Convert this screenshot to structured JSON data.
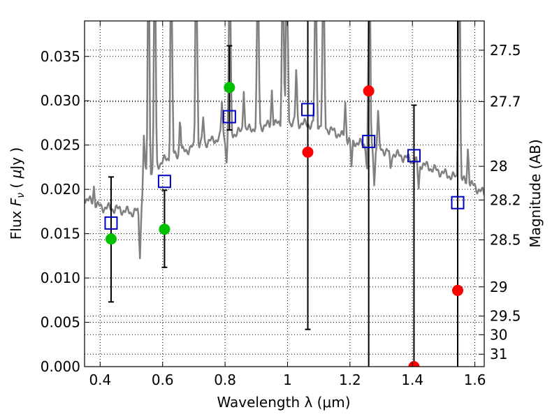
{
  "chart_data": {
    "type": "scatter",
    "title": "",
    "xlabel": "Wavelength  λ (μm)",
    "ylabel_parts": [
      "Flux ",
      "F",
      "ν",
      " ( ",
      "μ",
      "Jy )"
    ],
    "ylabel_right": "Magnitude (AB)",
    "xlim": [
      0.35,
      1.63
    ],
    "ylim": [
      0.0,
      0.039
    ],
    "grid": true,
    "x_ticks": [
      0.4,
      0.6,
      0.8,
      1.0,
      1.2,
      1.4,
      1.6
    ],
    "x_tick_labels": [
      "0.4",
      "0.6",
      "0.8",
      "1",
      "1.2",
      "1.4",
      "1.6"
    ],
    "y_ticks": [
      0.0,
      0.005,
      0.01,
      0.015,
      0.02,
      0.025,
      0.03,
      0.035
    ],
    "y_tick_labels": [
      "0.000",
      "0.005",
      "0.010",
      "0.015",
      "0.020",
      "0.025",
      "0.030",
      "0.035"
    ],
    "right_ticks": [
      {
        "label": "27.5",
        "flux": 0.0357
      },
      {
        "label": "27.7",
        "flux": 0.0299
      },
      {
        "label": "28",
        "flux": 0.0226
      },
      {
        "label": "28.2",
        "flux": 0.0188
      },
      {
        "label": "28.5",
        "flux": 0.0143
      },
      {
        "label": "29",
        "flux": 0.009
      },
      {
        "label": "29.5",
        "flux": 0.0057
      },
      {
        "label": "30",
        "flux": 0.0036
      },
      {
        "label": "31",
        "flux": 0.0014
      }
    ],
    "colors": {
      "model": "#808080",
      "detected": "#00c000",
      "limit": "#ff0000",
      "synthetic": "#0000c0",
      "errorbar": "#000000",
      "grid": "#000000"
    },
    "model_spectrum": {
      "name": "model spectrum",
      "continuum": [
        [
          0.35,
          0.019
        ],
        [
          0.4,
          0.018
        ],
        [
          0.45,
          0.0178
        ],
        [
          0.5,
          0.0174
        ],
        [
          0.53,
          0.0176
        ],
        [
          0.545,
          0.0215
        ],
        [
          0.6,
          0.0232
        ],
        [
          0.7,
          0.0248
        ],
        [
          0.8,
          0.026
        ],
        [
          0.9,
          0.027
        ],
        [
          1.0,
          0.0276
        ],
        [
          1.05,
          0.0274
        ],
        [
          1.1,
          0.0272
        ],
        [
          1.15,
          0.0265
        ],
        [
          1.2,
          0.0255
        ],
        [
          1.3,
          0.0245
        ],
        [
          1.4,
          0.0233
        ],
        [
          1.5,
          0.0218
        ],
        [
          1.55,
          0.0212
        ],
        [
          1.6,
          0.0203
        ],
        [
          1.63,
          0.0195
        ]
      ],
      "spikes": [
        [
          0.38,
          0.002
        ],
        [
          0.54,
          0.006
        ],
        [
          0.555,
          0.05
        ],
        [
          0.575,
          0.05
        ],
        [
          0.628,
          0.05
        ],
        [
          0.656,
          0.004
        ],
        [
          0.708,
          0.05
        ],
        [
          0.73,
          0.003
        ],
        [
          0.79,
          0.004
        ],
        [
          0.815,
          0.05
        ],
        [
          0.86,
          0.005
        ],
        [
          0.905,
          0.05
        ],
        [
          0.95,
          0.004
        ],
        [
          0.985,
          0.05
        ],
        [
          0.998,
          0.05
        ],
        [
          1.028,
          0.006
        ],
        [
          1.09,
          0.05
        ],
        [
          1.115,
          0.05
        ],
        [
          1.185,
          0.004
        ],
        [
          1.262,
          0.05
        ],
        [
          1.29,
          0.004
        ],
        [
          1.55,
          0.05
        ],
        [
          1.578,
          0.004
        ]
      ],
      "dips": [
        [
          0.527,
          0.005
        ],
        [
          0.805,
          0.003
        ],
        [
          1.205,
          0.003
        ],
        [
          1.255,
          0.003
        ],
        [
          1.278,
          0.004
        ],
        [
          1.33,
          0.002
        ],
        [
          1.42,
          0.003
        ]
      ]
    },
    "observed_detections": [
      {
        "x": 0.435,
        "y": 0.0144
      },
      {
        "x": 0.606,
        "y": 0.0155
      },
      {
        "x": 0.814,
        "y": 0.0315
      }
    ],
    "observed_limits": [
      {
        "x": 1.065,
        "y": 0.0242
      },
      {
        "x": 1.26,
        "y": 0.0311
      },
      {
        "x": 1.405,
        "y": 0.0
      },
      {
        "x": 1.545,
        "y": 0.0086
      }
    ],
    "synthetic_photometry": [
      {
        "x": 0.435,
        "y": 0.0162
      },
      {
        "x": 0.606,
        "y": 0.0209
      },
      {
        "x": 0.814,
        "y": 0.0282
      },
      {
        "x": 1.065,
        "y": 0.029
      },
      {
        "x": 1.26,
        "y": 0.0254
      },
      {
        "x": 1.405,
        "y": 0.0238
      },
      {
        "x": 1.545,
        "y": 0.0185
      }
    ],
    "error_bars": [
      {
        "x": 0.435,
        "low": 0.0073,
        "high": 0.0214
      },
      {
        "x": 0.606,
        "low": 0.0112,
        "high": 0.0199
      },
      {
        "x": 0.814,
        "low": 0.0267,
        "high": 0.0362
      },
      {
        "x": 1.065,
        "low": 0.0042,
        "high": 0.039
      },
      {
        "x": 1.26,
        "low": 0.0,
        "high": 0.039
      },
      {
        "x": 1.405,
        "low": 0.0,
        "high": 0.0295
      },
      {
        "x": 1.545,
        "low": 0.0,
        "high": 0.039
      }
    ]
  }
}
